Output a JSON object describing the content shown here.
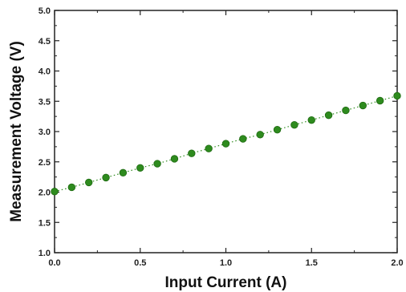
{
  "chart_data": {
    "type": "scatter",
    "title": "",
    "xlabel": "Input Current (A)",
    "ylabel": "Measurement Voltage (V)",
    "xlim": [
      0.0,
      2.0
    ],
    "ylim": [
      1.0,
      5.0
    ],
    "x_ticks": [
      "0.0",
      "0.5",
      "1.0",
      "1.5",
      "2.0"
    ],
    "y_ticks": [
      "1.0",
      "1.5",
      "2.0",
      "2.5",
      "3.0",
      "3.5",
      "4.0",
      "4.5",
      "5.0"
    ],
    "grid": false,
    "legend": "none",
    "marker_color": "#2e8b1e",
    "line_style": "dotted",
    "series": [
      {
        "x": [
          0.0,
          0.1,
          0.2,
          0.3,
          0.4,
          0.5,
          0.6,
          0.7,
          0.8,
          0.9,
          1.0,
          1.1,
          1.2,
          1.3,
          1.4,
          1.5,
          1.6,
          1.7,
          1.8,
          1.9,
          2.0
        ],
        "y": [
          2.01,
          2.08,
          2.16,
          2.24,
          2.32,
          2.4,
          2.47,
          2.55,
          2.64,
          2.72,
          2.8,
          2.88,
          2.95,
          3.03,
          3.11,
          3.19,
          3.27,
          3.35,
          3.43,
          3.51,
          3.59
        ]
      }
    ]
  }
}
